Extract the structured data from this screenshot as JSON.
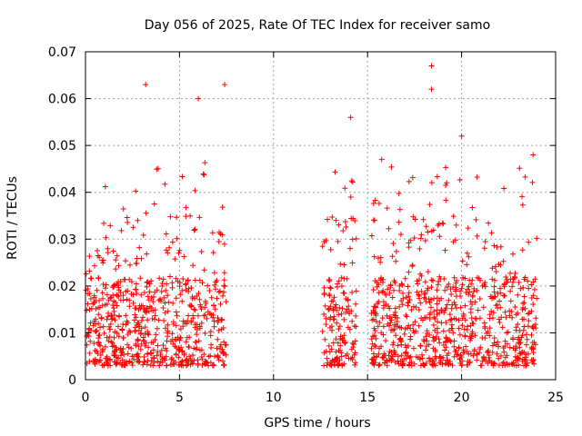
{
  "chart_data": {
    "type": "scatter",
    "title": "Day 056 of 2025, Rate Of TEC Index for receiver samo",
    "xlabel": "GPS time / hours",
    "ylabel": "ROTI / TECUs",
    "xlim": [
      0,
      25
    ],
    "ylim": [
      0,
      0.07
    ],
    "xticks": [
      0,
      5,
      10,
      15,
      20,
      25
    ],
    "yticks": [
      0,
      0.01,
      0.02,
      0.03,
      0.04,
      0.05,
      0.06,
      0.07
    ],
    "xtick_labels": [
      "0",
      "5",
      "10",
      "15",
      "20",
      "25"
    ],
    "ytick_labels": [
      "0",
      "0.01",
      "0.02",
      "0.03",
      "0.04",
      "0.05",
      "0.06",
      "0.07"
    ],
    "grid": true,
    "marker": "+",
    "color": "#ff0000",
    "segments": [
      {
        "x_start": 0.0,
        "x_end": 7.5,
        "typical_min": 0.003,
        "typical_max": 0.035
      },
      {
        "x_start": 12.6,
        "x_end": 14.4,
        "typical_min": 0.003,
        "typical_max": 0.035
      },
      {
        "x_start": 15.2,
        "x_end": 24.0,
        "typical_min": 0.003,
        "typical_max": 0.035
      }
    ],
    "peaks": [
      {
        "x": 3.2,
        "y": 0.063
      },
      {
        "x": 6.0,
        "y": 0.06
      },
      {
        "x": 7.4,
        "y": 0.063
      },
      {
        "x": 14.1,
        "y": 0.056
      },
      {
        "x": 18.4,
        "y": 0.067
      },
      {
        "x": 18.4,
        "y": 0.062
      },
      {
        "x": 20.0,
        "y": 0.052
      },
      {
        "x": 23.8,
        "y": 0.048
      }
    ]
  }
}
